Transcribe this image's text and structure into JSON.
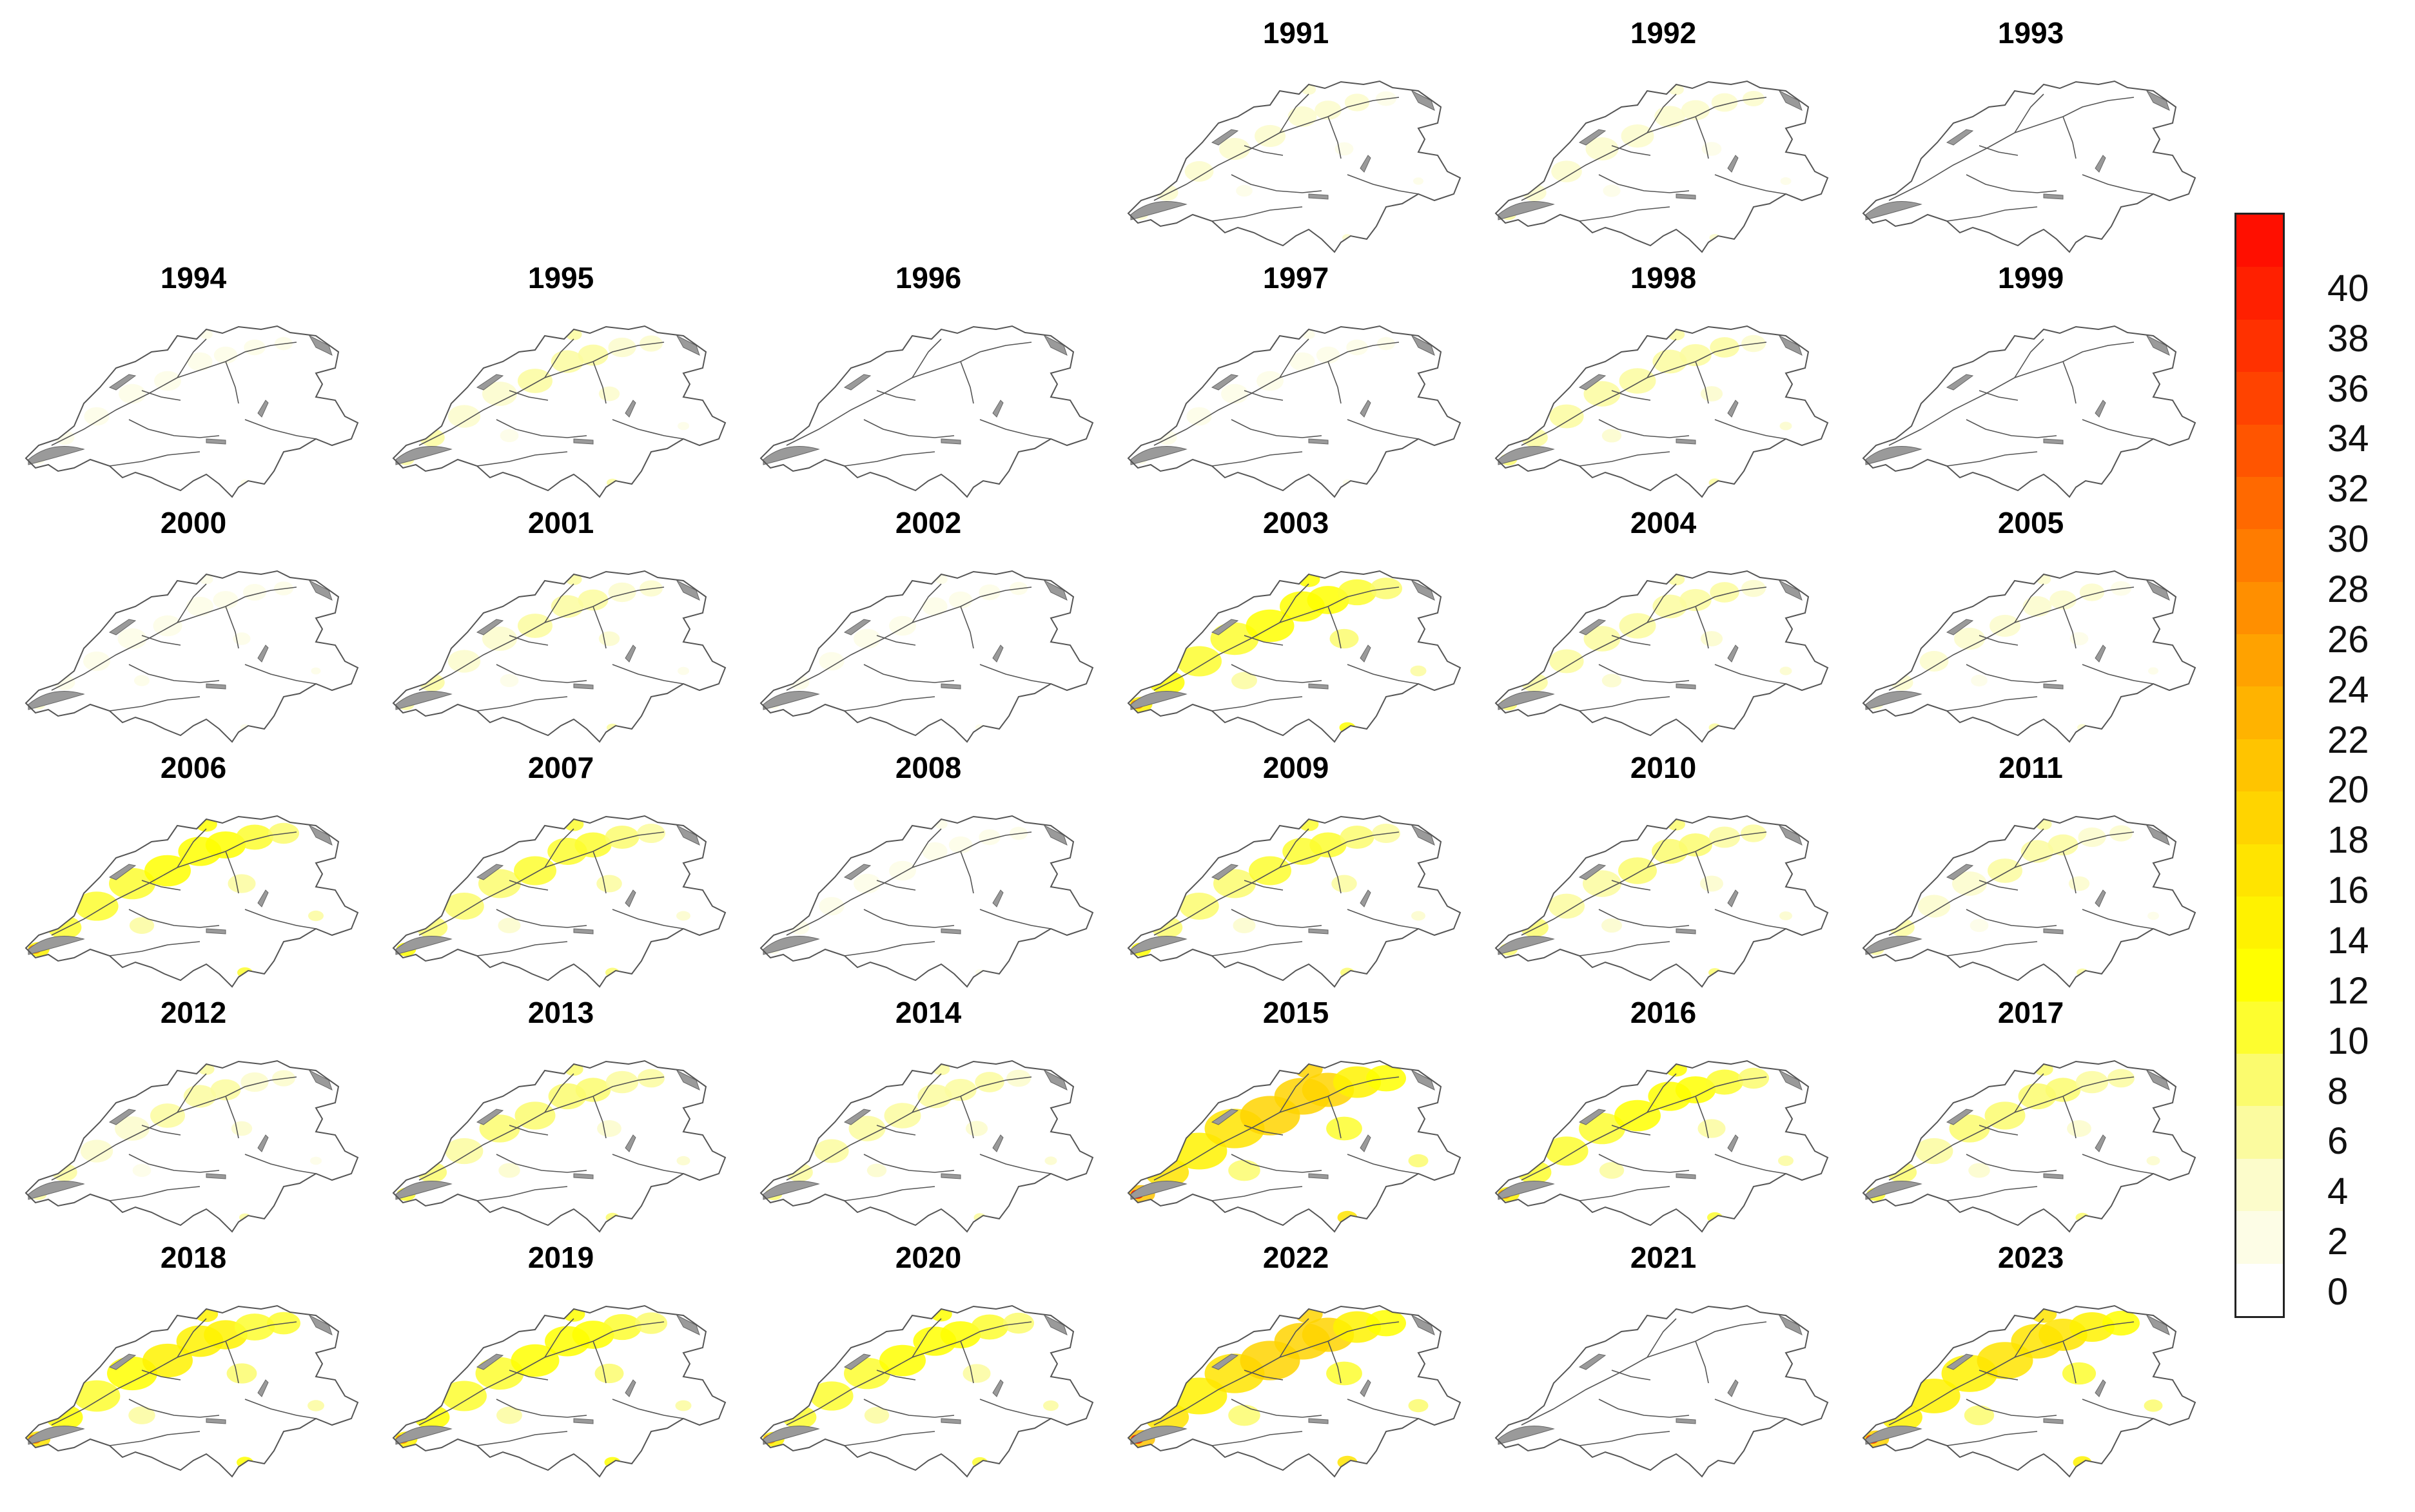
{
  "panels": [
    {
      "year": "1991",
      "intensity": 0.2
    },
    {
      "year": "1992",
      "intensity": 0.25
    },
    {
      "year": "1993",
      "intensity": 0.05
    },
    {
      "year": "1994",
      "intensity": 0.1
    },
    {
      "year": "1995",
      "intensity": 0.3
    },
    {
      "year": "1996",
      "intensity": 0.05
    },
    {
      "year": "1997",
      "intensity": 0.1
    },
    {
      "year": "1998",
      "intensity": 0.35
    },
    {
      "year": "1999",
      "intensity": 0.05
    },
    {
      "year": "2000",
      "intensity": 0.15
    },
    {
      "year": "2001",
      "intensity": 0.3
    },
    {
      "year": "2002",
      "intensity": 0.1
    },
    {
      "year": "2003",
      "intensity": 0.65
    },
    {
      "year": "2004",
      "intensity": 0.35
    },
    {
      "year": "2005",
      "intensity": 0.2
    },
    {
      "year": "2006",
      "intensity": 0.6
    },
    {
      "year": "2007",
      "intensity": 0.5
    },
    {
      "year": "2008",
      "intensity": 0.1
    },
    {
      "year": "2009",
      "intensity": 0.5
    },
    {
      "year": "2010",
      "intensity": 0.4
    },
    {
      "year": "2011",
      "intensity": 0.3
    },
    {
      "year": "2012",
      "intensity": 0.3
    },
    {
      "year": "2013",
      "intensity": 0.45
    },
    {
      "year": "2014",
      "intensity": 0.35
    },
    {
      "year": "2015",
      "intensity": 0.95
    },
    {
      "year": "2016",
      "intensity": 0.6
    },
    {
      "year": "2017",
      "intensity": 0.45
    },
    {
      "year": "2018",
      "intensity": 0.7
    },
    {
      "year": "2019",
      "intensity": 0.65
    },
    {
      "year": "2020",
      "intensity": 0.6
    },
    {
      "year": "2022",
      "intensity": 0.95
    },
    {
      "year": "2021",
      "intensity": 0.05
    },
    {
      "year": "2023",
      "intensity": 0.85
    }
  ],
  "colorbar": {
    "min": 0,
    "max": 42,
    "ticks": [
      "0",
      "2",
      "4",
      "6",
      "8",
      "10",
      "12",
      "14",
      "16",
      "18",
      "20",
      "22",
      "24",
      "26",
      "28",
      "30",
      "32",
      "34",
      "36",
      "38",
      "40"
    ],
    "colors": [
      "#ffffff",
      "#fdfde6",
      "#fcfccb",
      "#fbfb9f",
      "#fbfb6e",
      "#fdfd2f",
      "#ffff00",
      "#fff200",
      "#ffe400",
      "#ffd400",
      "#ffc400",
      "#ffb300",
      "#ffa200",
      "#ff8f00",
      "#ff7c00",
      "#ff6900",
      "#ff5500",
      "#ff4300",
      "#ff3100",
      "#ff2000",
      "#ff0f00"
    ]
  }
}
